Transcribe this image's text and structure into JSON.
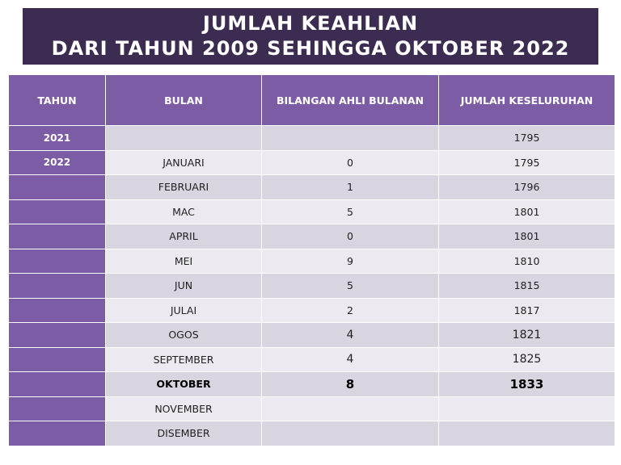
{
  "title": {
    "line1": "JUMLAH KEAHLIAN",
    "line2": "DARI TAHUN 2009 SEHINGGA OKTOBER 2022"
  },
  "table": {
    "headers": [
      "TAHUN",
      "BULAN",
      "BILANGAN AHLI BULANAN",
      "JUMLAH KESELURUHAN"
    ],
    "rows": [
      {
        "tahun": "2021",
        "bulan": "",
        "bilangan": "",
        "jumlah": "1795"
      },
      {
        "tahun": "2022",
        "bulan": "JANUARI",
        "bilangan": "0",
        "jumlah": "1795"
      },
      {
        "tahun": "",
        "bulan": "FEBRUARI",
        "bilangan": "1",
        "jumlah": "1796"
      },
      {
        "tahun": "",
        "bulan": "MAC",
        "bilangan": "5",
        "jumlah": "1801"
      },
      {
        "tahun": "",
        "bulan": "APRIL",
        "bilangan": "0",
        "jumlah": "1801"
      },
      {
        "tahun": "",
        "bulan": "MEI",
        "bilangan": "9",
        "jumlah": "1810"
      },
      {
        "tahun": "",
        "bulan": "JUN",
        "bilangan": "5",
        "jumlah": "1815"
      },
      {
        "tahun": "",
        "bulan": "JULAI",
        "bilangan": "2",
        "jumlah": "1817"
      },
      {
        "tahun": "",
        "bulan": "OGOS",
        "bilangan": "4",
        "jumlah": "1821"
      },
      {
        "tahun": "",
        "bulan": "SEPTEMBER",
        "bilangan": "4",
        "jumlah": "1825"
      },
      {
        "tahun": "",
        "bulan": "OKTOBER",
        "bilangan": "8",
        "jumlah": "1833"
      },
      {
        "tahun": "",
        "bulan": "NOVEMBER",
        "bilangan": "",
        "jumlah": ""
      },
      {
        "tahun": "",
        "bulan": "DISEMBER",
        "bilangan": "",
        "jumlah": ""
      }
    ]
  },
  "colors": {
    "title_bg": "#3d2c51",
    "header_bg": "#7c5ca4",
    "row_dark": "#d8d4e0",
    "row_light": "#ece9f0"
  }
}
